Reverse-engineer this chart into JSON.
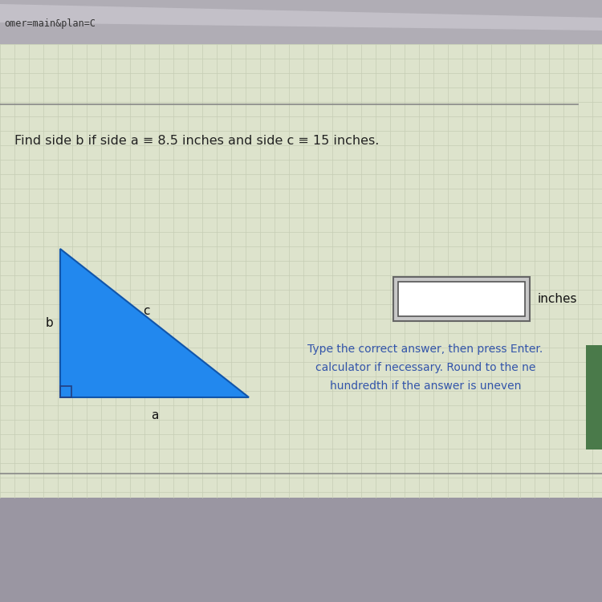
{
  "browser_bar_text": "omer=main&plan=C",
  "browser_bar_bg": "#b0adb5",
  "browser_bar_highlight": "#d0cdd5",
  "outer_bg": "#9a96a2",
  "page_bg": "#dde3cc",
  "grid_color": "#c5cdb5",
  "separator_color": "#888888",
  "question_text": "Find side b if side a ≡ 8.5 inches and side c ≡ 15 inches.",
  "question_fontsize": 11.5,
  "question_color": "#222222",
  "side_a_label": "a",
  "side_b_label": "b",
  "side_c_label": "c",
  "label_color": "#111111",
  "label_fontsize": 11,
  "triangle_fill": "#2288ee",
  "triangle_fill2": "#55aaff",
  "right_angle_color": "#224488",
  "input_outer_bg": "#c8c8c8",
  "input_outer_border": "#666666",
  "input_inner_bg": "#ffffff",
  "input_inner_border": "#555555",
  "inches_label": "inches",
  "inches_fontsize": 11,
  "inches_color": "#111111",
  "instruction_line1": "Type the correct answer, then press Enter.",
  "instruction_line2": "calculator if necessary. Round to the ne",
  "instruction_line3": "hundredth if the answer is uneven",
  "instruction_color": "#3355aa",
  "instruction_fontsize": 10,
  "scrollbar_color": "#4a7a4a",
  "bottom_bar_bg": "#9a96a2"
}
